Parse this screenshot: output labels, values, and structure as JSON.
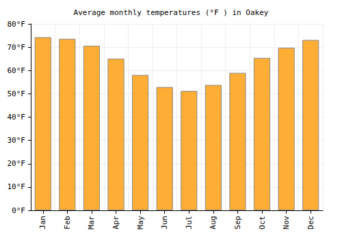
{
  "chart_data": {
    "type": "bar",
    "title": "Average monthly temperatures (°F ) in Oakey",
    "categories": [
      "Jan",
      "Feb",
      "Mar",
      "Apr",
      "May",
      "Jun",
      "Jul",
      "Aug",
      "Sep",
      "Oct",
      "Nov",
      "Dec"
    ],
    "values": [
      74.3,
      73.6,
      70.6,
      65.1,
      58.1,
      52.9,
      51.2,
      53.8,
      59.0,
      65.4,
      69.8,
      73.1
    ],
    "color": "#ffae35",
    "ylim": [
      0,
      80
    ],
    "yticks": [
      {
        "value": 0,
        "label": "0°F"
      },
      {
        "value": 10,
        "label": "10°F"
      },
      {
        "value": 20,
        "label": "20°F"
      },
      {
        "value": 30,
        "label": "30°F"
      },
      {
        "value": 40,
        "label": "40°F"
      },
      {
        "value": 50,
        "label": "50°F"
      },
      {
        "value": 60,
        "label": "60°F"
      },
      {
        "value": 70,
        "label": "70°F"
      },
      {
        "value": 80,
        "label": "80°F"
      }
    ],
    "grid": true
  }
}
